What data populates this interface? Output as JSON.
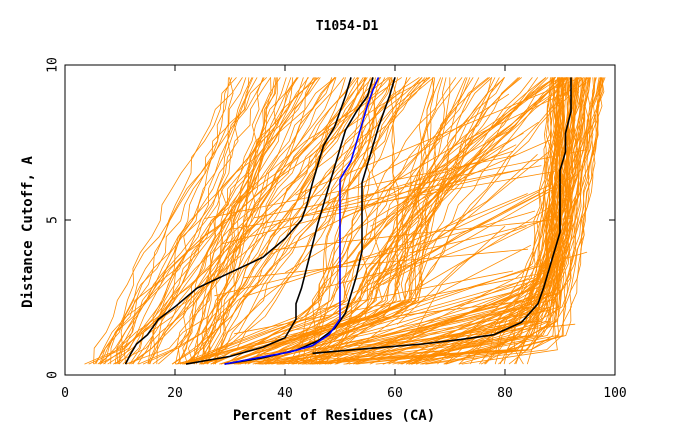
{
  "chart_data": {
    "type": "line",
    "title": "T1054-D1",
    "xlabel": "Percent of Residues (CA)",
    "ylabel": "Distance Cutoff, A",
    "xlim": [
      0,
      100
    ],
    "ylim": [
      0,
      10
    ],
    "xticks": [
      0,
      20,
      40,
      60,
      80,
      100
    ],
    "yticks": [
      0,
      5,
      10
    ],
    "grid": false,
    "colors": {
      "bundle": "#ff8c00",
      "black": "#000000",
      "blue": "#0000ff"
    },
    "series": [
      {
        "color": "black",
        "points": [
          [
            11,
            0.35
          ],
          [
            12,
            0.7
          ],
          [
            13,
            1.0
          ],
          [
            15,
            1.3
          ],
          [
            17,
            1.8
          ],
          [
            20,
            2.2
          ],
          [
            24,
            2.8
          ],
          [
            30,
            3.3
          ],
          [
            36,
            3.8
          ],
          [
            40,
            4.4
          ],
          [
            43,
            5.0
          ],
          [
            44,
            5.5
          ],
          [
            45,
            6.2
          ],
          [
            46,
            6.8
          ],
          [
            47,
            7.4
          ],
          [
            49,
            8.0
          ],
          [
            50,
            8.5
          ],
          [
            51,
            9.0
          ],
          [
            52,
            9.6
          ]
        ]
      },
      {
        "color": "black",
        "points": [
          [
            22,
            0.35
          ],
          [
            30,
            0.6
          ],
          [
            36,
            0.9
          ],
          [
            40,
            1.2
          ],
          [
            42,
            1.8
          ],
          [
            42,
            2.3
          ],
          [
            43,
            2.8
          ],
          [
            44,
            3.5
          ],
          [
            45,
            4.2
          ],
          [
            46,
            4.9
          ],
          [
            47,
            5.5
          ],
          [
            48,
            6.1
          ],
          [
            49,
            6.7
          ],
          [
            50,
            7.3
          ],
          [
            51,
            7.9
          ],
          [
            53,
            8.5
          ],
          [
            55,
            9.0
          ],
          [
            56,
            9.6
          ]
        ]
      },
      {
        "color": "black",
        "points": [
          [
            29,
            0.35
          ],
          [
            36,
            0.55
          ],
          [
            42,
            0.8
          ],
          [
            46,
            1.1
          ],
          [
            49,
            1.5
          ],
          [
            51,
            2.0
          ],
          [
            52,
            2.6
          ],
          [
            53,
            3.2
          ],
          [
            54,
            4.0
          ],
          [
            54,
            4.8
          ],
          [
            54,
            5.5
          ],
          [
            54,
            6.2
          ],
          [
            55,
            6.8
          ],
          [
            56,
            7.4
          ],
          [
            57,
            8.0
          ],
          [
            58,
            8.5
          ],
          [
            59,
            9.0
          ],
          [
            60,
            9.6
          ]
        ]
      },
      {
        "color": "black",
        "points": [
          [
            45,
            0.7
          ],
          [
            55,
            0.85
          ],
          [
            65,
            1.0
          ],
          [
            72,
            1.15
          ],
          [
            78,
            1.3
          ],
          [
            83,
            1.7
          ],
          [
            86,
            2.3
          ],
          [
            87,
            2.8
          ],
          [
            88,
            3.4
          ],
          [
            89,
            4.0
          ],
          [
            90,
            4.6
          ],
          [
            90,
            5.3
          ],
          [
            90,
            6.0
          ],
          [
            90,
            6.6
          ],
          [
            91,
            7.2
          ],
          [
            91,
            7.8
          ],
          [
            92,
            8.5
          ],
          [
            92,
            9.0
          ],
          [
            92,
            9.6
          ]
        ]
      },
      {
        "color": "blue",
        "points": [
          [
            29,
            0.35
          ],
          [
            35,
            0.55
          ],
          [
            41,
            0.75
          ],
          [
            45,
            0.95
          ],
          [
            48,
            1.3
          ],
          [
            50,
            1.8
          ],
          [
            50,
            2.5
          ],
          [
            50,
            3.3
          ],
          [
            50,
            4.0
          ],
          [
            50,
            4.8
          ],
          [
            50,
            5.5
          ],
          [
            50,
            6.3
          ],
          [
            52,
            6.9
          ],
          [
            53,
            7.5
          ],
          [
            54,
            8.1
          ],
          [
            55,
            8.7
          ],
          [
            56,
            9.2
          ],
          [
            57,
            9.6
          ]
        ]
      }
    ]
  }
}
